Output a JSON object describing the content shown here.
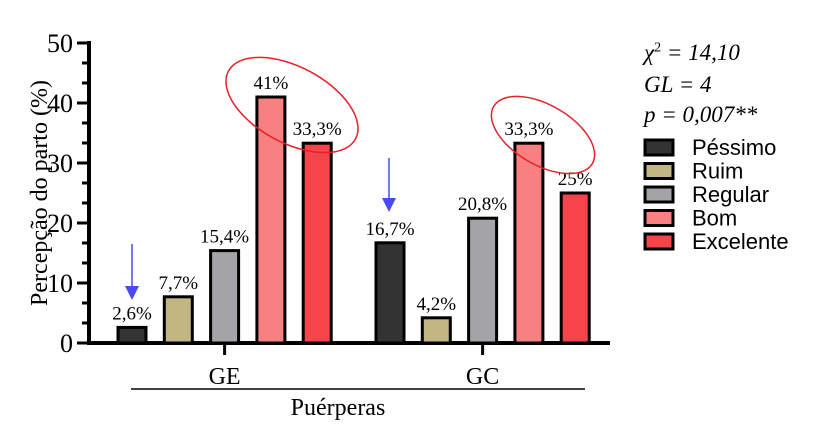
{
  "chart_data": {
    "type": "bar",
    "ylabel": "Percepção do parto (%)",
    "xlabel": "Puérperas",
    "ylim": [
      0,
      50
    ],
    "yticks": [
      "0",
      "10",
      "20",
      "30",
      "40",
      "50"
    ],
    "categories": [
      "GE",
      "GC"
    ],
    "series": [
      {
        "name": "Péssimo",
        "color": "#333333",
        "values": [
          2.6,
          16.7
        ],
        "labels": [
          "2,6%",
          "16,7%"
        ]
      },
      {
        "name": "Ruim",
        "color": "#c2b682",
        "values": [
          7.7,
          4.2
        ],
        "labels": [
          "7,7%",
          "4,2%"
        ]
      },
      {
        "name": "Regular",
        "color": "#a3a3a8",
        "values": [
          15.4,
          20.8
        ],
        "labels": [
          "15,4%",
          "20,8%"
        ]
      },
      {
        "name": "Bom",
        "color": "#f88080",
        "values": [
          41,
          33.3
        ],
        "labels": [
          "41%",
          "33,3%"
        ]
      },
      {
        "name": "Excelente",
        "color": "#f5444a",
        "values": [
          33.3,
          25
        ],
        "labels": [
          "33,3%",
          "25%"
        ]
      }
    ],
    "legend_position": "right",
    "stats": {
      "chi2_prefix": "χ",
      "chi2_sup": "2",
      "chi2_value": " = 14,10",
      "gl": "GL = 4",
      "p": "p = 0,007**"
    },
    "annotation_colors": {
      "ellipse": "#e8202a",
      "arrow": "#4a4af5"
    }
  }
}
